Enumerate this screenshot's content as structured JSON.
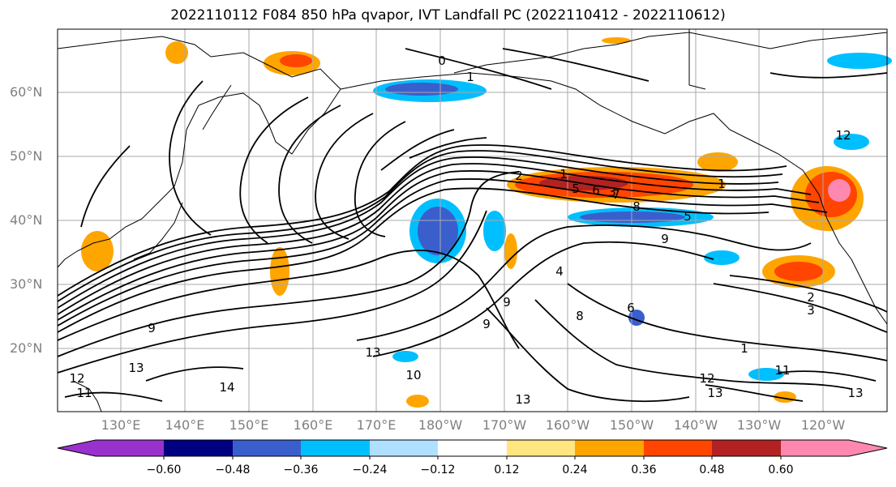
{
  "title": "2022110112 F084 850 hPa qvapor, IVT Landfall PC (2022110412 - 2022110612)",
  "lat_labels": [
    "60°N",
    "50°N",
    "40°N",
    "30°N",
    "20°N"
  ],
  "lon_labels": [
    "130°E",
    "140°E",
    "150°E",
    "160°E",
    "170°E",
    "180°W",
    "170°W",
    "160°W",
    "150°W",
    "140°W",
    "130°W",
    "120°W"
  ],
  "colorbar": {
    "ticks": [
      "−0.60",
      "−0.48",
      "−0.36",
      "−0.24",
      "−0.12",
      "0.12",
      "0.24",
      "0.36",
      "0.48",
      "0.60"
    ],
    "colors": [
      "#9932cc",
      "#000080",
      "#3a5fcd",
      "#00bfff",
      "#b0e0ff",
      "#ffffff",
      "#ffe680",
      "#ffa500",
      "#ff4500",
      "#b22222",
      "#ff88b0"
    ]
  },
  "contour_labels": [
    "0",
    "1",
    "1",
    "2",
    "3",
    "5",
    "6",
    "7",
    "8",
    "9",
    "4",
    "6",
    "8",
    "9",
    "10",
    "11",
    "12",
    "13",
    "13",
    "13",
    "13",
    "14",
    "11",
    "12",
    "1",
    "2",
    "3",
    "5",
    "9",
    "13",
    "9",
    "12",
    "1"
  ]
}
